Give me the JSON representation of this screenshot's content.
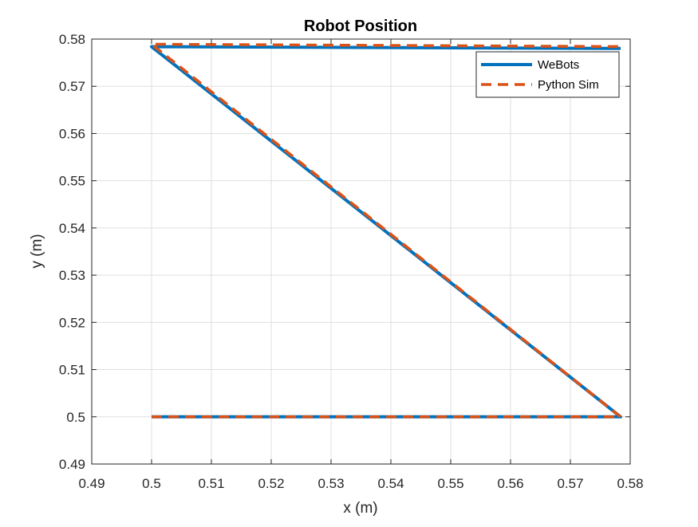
{
  "chart_data": {
    "type": "line",
    "title": "Robot Position",
    "xlabel": "x (m)",
    "ylabel": "y (m)",
    "xlim": [
      0.49,
      0.58
    ],
    "ylim": [
      0.49,
      0.58
    ],
    "xticks": [
      0.49,
      0.5,
      0.51,
      0.52,
      0.53,
      0.54,
      0.55,
      0.56,
      0.57,
      0.58
    ],
    "yticks": [
      0.49,
      0.5,
      0.51,
      0.52,
      0.53,
      0.54,
      0.55,
      0.56,
      0.57,
      0.58
    ],
    "xtick_labels": [
      "0.49",
      "0.5",
      "0.51",
      "0.52",
      "0.53",
      "0.54",
      "0.55",
      "0.56",
      "0.57",
      "0.58"
    ],
    "ytick_labels": [
      "0.49",
      "0.5",
      "0.51",
      "0.52",
      "0.53",
      "0.54",
      "0.55",
      "0.56",
      "0.57",
      "0.58"
    ],
    "grid": true,
    "legend_position": "top-right",
    "series": [
      {
        "name": "WeBots",
        "color": "#0072BD",
        "style": "solid",
        "x": [
          0.5,
          0.5784,
          0.5,
          0.5784
        ],
        "y": [
          0.5,
          0.5,
          0.5784,
          0.578
        ]
      },
      {
        "name": "Python Sim",
        "color": "#D95319",
        "style": "dashed",
        "x": [
          0.5,
          0.5784,
          0.5,
          0.5784
        ],
        "y": [
          0.5,
          0.5,
          0.5789,
          0.5784
        ]
      }
    ]
  }
}
